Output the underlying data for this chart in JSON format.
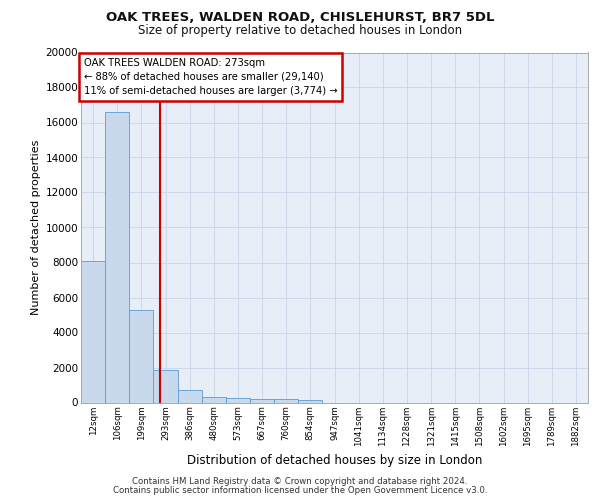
{
  "title1": "OAK TREES, WALDEN ROAD, CHISLEHURST, BR7 5DL",
  "title2": "Size of property relative to detached houses in London",
  "xlabel": "Distribution of detached houses by size in London",
  "ylabel": "Number of detached properties",
  "bar_color": "#c8d9ee",
  "bar_edge_color": "#5b9bd5",
  "grid_color": "#c8d4e8",
  "bg_color": "#e8eef8",
  "categories": [
    "12sqm",
    "106sqm",
    "199sqm",
    "293sqm",
    "386sqm",
    "480sqm",
    "573sqm",
    "667sqm",
    "760sqm",
    "854sqm",
    "947sqm",
    "1041sqm",
    "1134sqm",
    "1228sqm",
    "1321sqm",
    "1415sqm",
    "1508sqm",
    "1602sqm",
    "1695sqm",
    "1789sqm",
    "1882sqm"
  ],
  "bar_heights": [
    8100,
    16600,
    5300,
    1850,
    700,
    310,
    230,
    190,
    175,
    120,
    0,
    0,
    0,
    0,
    0,
    0,
    0,
    0,
    0,
    0,
    0
  ],
  "ylim": [
    0,
    20000
  ],
  "yticks": [
    0,
    2000,
    4000,
    6000,
    8000,
    10000,
    12000,
    14000,
    16000,
    18000,
    20000
  ],
  "annotation_text": "OAK TREES WALDEN ROAD: 273sqm\n← 88% of detached houses are smaller (29,140)\n11% of semi-detached houses are larger (3,774) →",
  "annotation_box_color": "#ffffff",
  "annotation_border_color": "#cc0000",
  "red_line_color": "#cc0000",
  "footnote1": "Contains HM Land Registry data © Crown copyright and database right 2024.",
  "footnote2": "Contains public sector information licensed under the Open Government Licence v3.0."
}
